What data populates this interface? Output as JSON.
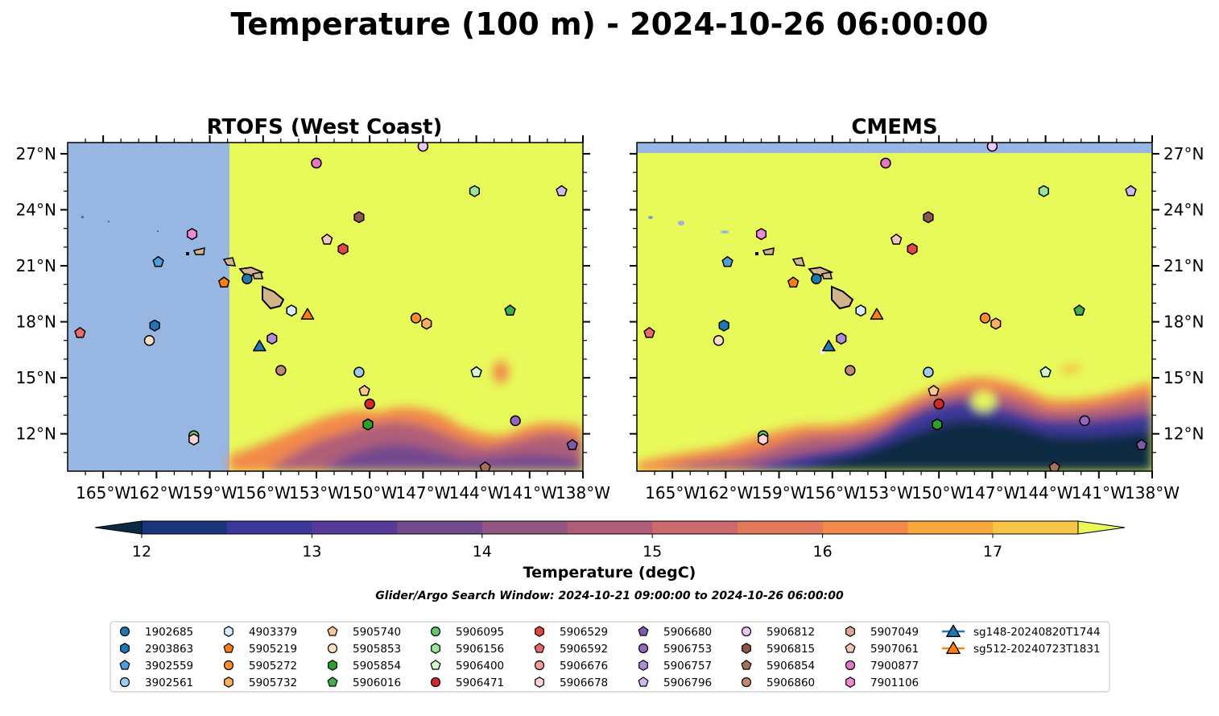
{
  "title": "Temperature (100 m) - 2024-10-26 06:00:00",
  "panels": [
    {
      "title": "RTOFS (West Coast)"
    },
    {
      "title": "CMEMS"
    }
  ],
  "colorbar": {
    "label": "Temperature (degC)",
    "ticks": [
      "12",
      "13",
      "14",
      "15",
      "16",
      "17"
    ],
    "colors": [
      "#0b2a43",
      "#1a3579",
      "#3a3898",
      "#563b99",
      "#744a8f",
      "#935683",
      "#b05e78",
      "#cc6a6b",
      "#e4785d",
      "#f2894a",
      "#f8a73d",
      "#f6c447",
      "#e8f95a"
    ]
  },
  "search_window": "Glider/Argo Search Window: 2024-10-21 09:00:00 to 2024-10-26 06:00:00",
  "chart_data": {
    "type": "scatter",
    "map_extent": {
      "lon": [
        -167,
        -138
      ],
      "lat": [
        10,
        27.6
      ]
    },
    "x_ticks": [
      "165°W",
      "162°W",
      "159°W",
      "156°W",
      "153°W",
      "150°W",
      "147°W",
      "144°W",
      "141°W",
      "138°W"
    ],
    "y_ticks": [
      "27°N",
      "24°N",
      "21°N",
      "18°N",
      "15°N",
      "12°N"
    ],
    "rtofs_missing_west_of": -157.9,
    "colors": {
      "land": "#d2b48c",
      "nodata": "#97b6e2",
      "warm": "#e8f95a"
    },
    "series": [
      {
        "name": "1902685",
        "marker": "circle",
        "color": "#1f77b4",
        "lon": -156.9,
        "lat": 20.3
      },
      {
        "name": "2903863",
        "marker": "hexagon",
        "color": "#1f77b4",
        "lon": -162.1,
        "lat": 17.8
      },
      {
        "name": "3902559",
        "marker": "pentagon",
        "color": "#4f9fd6",
        "lon": -161.9,
        "lat": 21.2
      },
      {
        "name": "3902561",
        "marker": "circle",
        "color": "#9ccbee",
        "lon": -150.6,
        "lat": 15.3
      },
      {
        "name": "4903379",
        "marker": "hexagon",
        "color": "#d6ecfa",
        "lon": -154.4,
        "lat": 18.6
      },
      {
        "name": "5905219",
        "marker": "pentagon",
        "color": "#ff7f0e",
        "lon": -158.2,
        "lat": 20.1
      },
      {
        "name": "5905272",
        "marker": "circle",
        "color": "#ff8c2e",
        "lon": -147.4,
        "lat": 18.2
      },
      {
        "name": "5905732",
        "marker": "hexagon",
        "color": "#ffae60",
        "lon": -146.8,
        "lat": 17.9
      },
      {
        "name": "5905740",
        "marker": "pentagon",
        "color": "#ffc78f",
        "lon": -150.3,
        "lat": 14.3
      },
      {
        "name": "5905853",
        "marker": "circle",
        "color": "#ffdfc0",
        "lon": -162.4,
        "lat": 17.0
      },
      {
        "name": "5905854",
        "marker": "hexagon",
        "color": "#2ca02c",
        "lon": -150.1,
        "lat": 12.5
      },
      {
        "name": "5906016",
        "marker": "pentagon",
        "color": "#3fb04a",
        "lon": -142.1,
        "lat": 18.6
      },
      {
        "name": "5906095",
        "marker": "circle",
        "color": "#62c864",
        "lon": -159.9,
        "lat": 11.9
      },
      {
        "name": "5906156",
        "marker": "hexagon",
        "color": "#99e699",
        "lon": -144.1,
        "lat": 25.0
      },
      {
        "name": "5906400",
        "marker": "pentagon",
        "color": "#d4f7cf",
        "lon": -144.0,
        "lat": 15.3
      },
      {
        "name": "5906471",
        "marker": "circle",
        "color": "#d62728",
        "lon": -150.0,
        "lat": 13.6
      },
      {
        "name": "5906529",
        "marker": "hexagon",
        "color": "#e64545",
        "lon": -151.5,
        "lat": 21.9
      },
      {
        "name": "5906592",
        "marker": "pentagon",
        "color": "#ee6a6a",
        "lon": -166.3,
        "lat": 17.4
      },
      {
        "name": "5906676",
        "marker": "circle",
        "color": "#f59a9a",
        "lon": null,
        "lat": null
      },
      {
        "name": "5906678",
        "marker": "hexagon",
        "color": "#ffd4d4",
        "lon": -159.9,
        "lat": 11.7
      },
      {
        "name": "5906680",
        "marker": "pentagon",
        "color": "#7e5aa8",
        "lon": -138.6,
        "lat": 11.4
      },
      {
        "name": "5906753",
        "marker": "circle",
        "color": "#9467bd",
        "lon": -141.8,
        "lat": 12.7
      },
      {
        "name": "5906757",
        "marker": "hexagon",
        "color": "#b08cd4",
        "lon": -155.5,
        "lat": 17.1
      },
      {
        "name": "5906796",
        "marker": "pentagon",
        "color": "#d2b8ee",
        "lon": -139.2,
        "lat": 25.0
      },
      {
        "name": "5906812",
        "marker": "circle",
        "color": "#ebc7f5",
        "lon": -147.0,
        "lat": 27.4
      },
      {
        "name": "5906815",
        "marker": "hexagon",
        "color": "#8c564b",
        "lon": -150.6,
        "lat": 23.6
      },
      {
        "name": "5906854",
        "marker": "pentagon",
        "color": "#a6705e",
        "lon": -143.5,
        "lat": 10.2
      },
      {
        "name": "5906860",
        "marker": "circle",
        "color": "#c08870",
        "lon": -155.0,
        "lat": 15.4
      },
      {
        "name": "5907049",
        "marker": "hexagon",
        "color": "#d8ab98",
        "lon": null,
        "lat": null
      },
      {
        "name": "5907061",
        "marker": "pentagon",
        "color": "#f3c8b8",
        "lon": -152.4,
        "lat": 22.4
      },
      {
        "name": "7900877",
        "marker": "circle",
        "color": "#e377c2",
        "lon": -153.0,
        "lat": 26.5
      },
      {
        "name": "7901106",
        "marker": "hexagon",
        "color": "#f08ad0",
        "lon": -160.0,
        "lat": 22.7
      },
      {
        "name": "sg148-20240820T1744",
        "marker": "triangle",
        "color": "#1f77b4",
        "lon": -156.2,
        "lat": 16.7
      },
      {
        "name": "sg512-20240723T1831",
        "marker": "triangle",
        "color": "#ff7f0e",
        "lon": -153.5,
        "lat": 18.4
      }
    ],
    "legend_columns": 10
  }
}
